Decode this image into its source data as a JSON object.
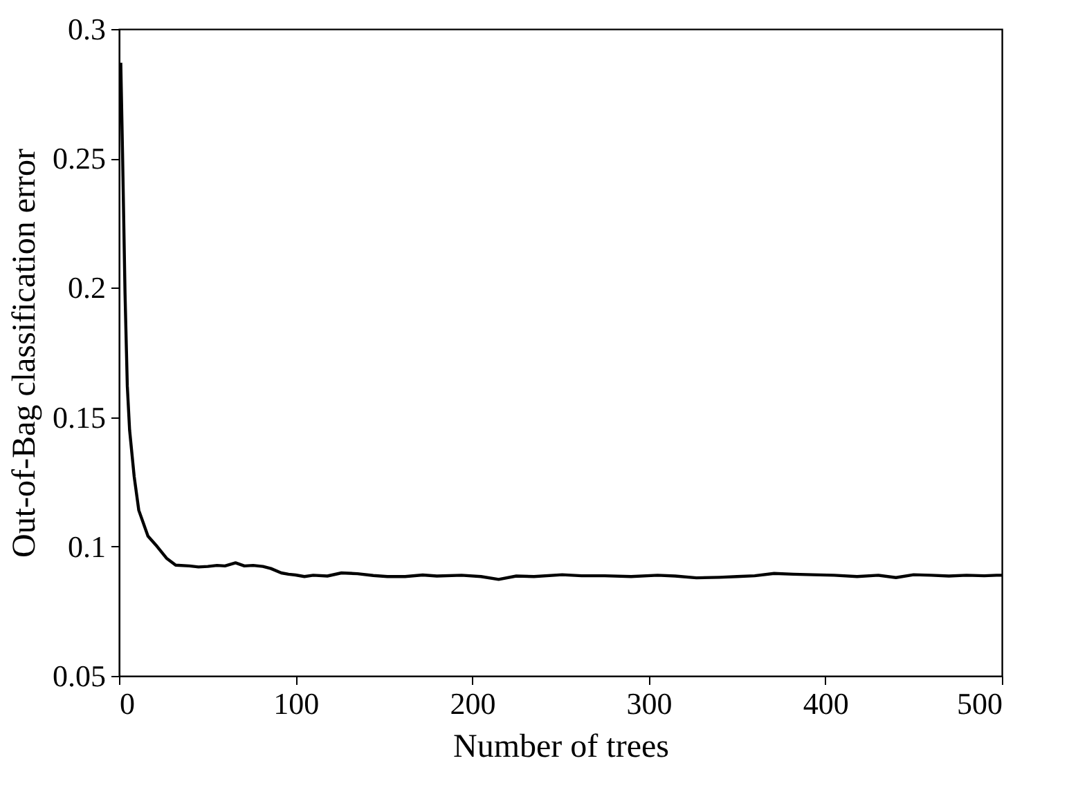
{
  "chart_data": {
    "type": "line",
    "xlabel": "Number of trees",
    "ylabel": "Out-of-Bag classification error",
    "x": [
      1,
      2,
      3.4,
      4.7,
      6,
      8.6,
      11.2,
      13.8,
      16.4,
      21.6,
      26.9,
      32.1,
      39.9,
      45,
      50.3,
      55.5,
      60,
      66,
      71,
      76,
      81.5,
      86,
      91.9,
      96,
      100,
      105,
      110,
      118,
      126,
      135,
      144,
      152,
      162,
      172,
      180,
      194,
      205,
      215,
      225,
      235,
      251,
      262,
      275,
      290,
      305,
      315,
      327,
      340,
      350,
      360,
      371,
      382,
      393,
      405,
      418,
      430,
      440,
      450,
      460,
      470,
      480,
      490,
      497,
      500
    ],
    "series": [
      {
        "color": "#000000",
        "values": [
          0.287,
          0.252,
          0.198,
          0.162,
          0.145,
          0.127,
          0.114,
          0.109,
          0.104,
          0.1,
          0.0955,
          0.0928,
          0.0925,
          0.0921,
          0.0923,
          0.0927,
          0.0925,
          0.0937,
          0.0925,
          0.0927,
          0.0923,
          0.0915,
          0.0898,
          0.0893,
          0.089,
          0.0884,
          0.0889,
          0.0886,
          0.0898,
          0.0895,
          0.0888,
          0.0884,
          0.0884,
          0.089,
          0.0886,
          0.0889,
          0.0884,
          0.0873,
          0.0886,
          0.0884,
          0.0891,
          0.0887,
          0.0887,
          0.0884,
          0.0889,
          0.0886,
          0.0879,
          0.0881,
          0.0884,
          0.0887,
          0.0896,
          0.0893,
          0.0891,
          0.0889,
          0.0884,
          0.0889,
          0.088,
          0.0891,
          0.0889,
          0.0886,
          0.0889,
          0.0887,
          0.0889,
          0.0889
        ]
      }
    ],
    "xlim": [
      0,
      500
    ],
    "xticks": [
      0,
      100,
      200,
      300,
      400,
      500
    ],
    "ylim": [
      0.05,
      0.3
    ],
    "yticks": [
      0.05,
      0.1,
      0.15,
      0.2,
      0.25,
      0.3
    ],
    "grid": false,
    "marker": "none",
    "line_style": "solid"
  }
}
